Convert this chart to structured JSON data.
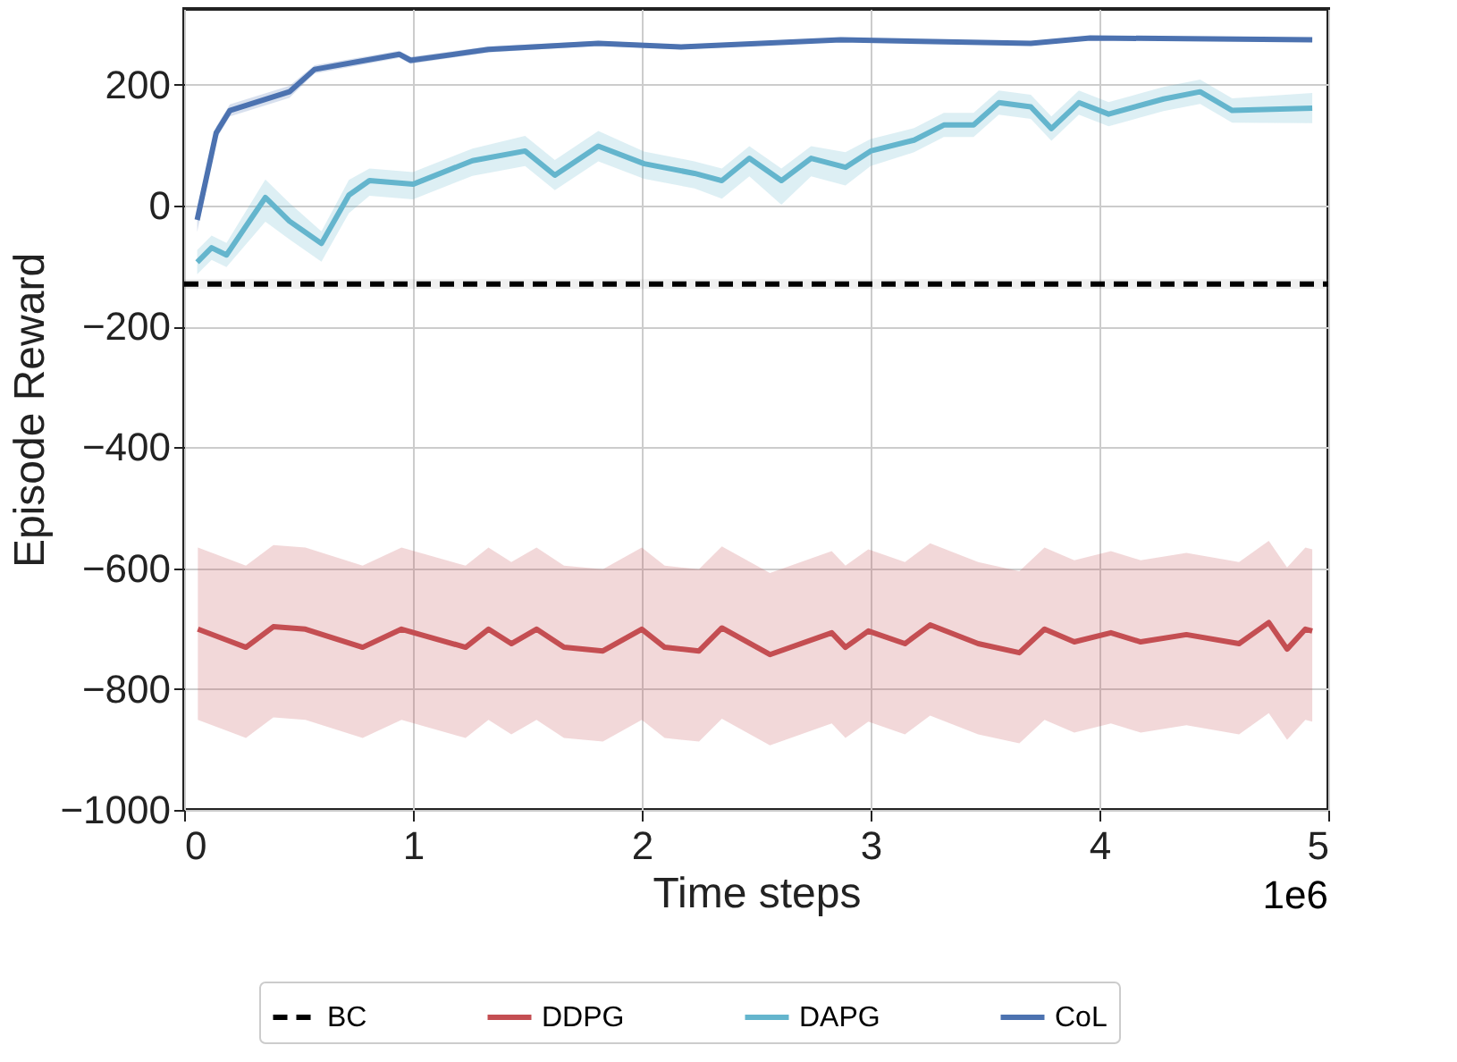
{
  "chart_data": {
    "type": "line",
    "xlabel": "Time steps",
    "ylabel": "Episode Reward",
    "annotations": [
      "1e6"
    ],
    "xlim": [
      0,
      5
    ],
    "xticks": [
      0,
      1,
      2,
      3,
      4,
      5
    ],
    "ylim": [
      -1000,
      325
    ],
    "yticks": [
      -1000,
      -800,
      -600,
      -400,
      -200,
      0,
      200
    ],
    "grid": true,
    "legend": "bottom",
    "marker": "none",
    "series": [
      {
        "name": "BC",
        "color": "#000000",
        "line_style": "dashed",
        "x": [
          0.0,
          5.0
        ],
        "values": [
          -130,
          -130
        ],
        "lower": [
          -138,
          -138
        ],
        "upper": [
          -122,
          -122
        ]
      },
      {
        "name": "DDPG",
        "color": "#c44e52",
        "line_style": "solid",
        "x": [
          0.06,
          0.27,
          0.39,
          0.53,
          0.78,
          0.95,
          1.23,
          1.33,
          1.43,
          1.54,
          1.66,
          1.83,
          2.0,
          2.1,
          2.25,
          2.35,
          2.56,
          2.83,
          2.89,
          2.99,
          3.15,
          3.26,
          3.47,
          3.65,
          3.76,
          3.89,
          4.05,
          4.18,
          4.38,
          4.61,
          4.74,
          4.82,
          4.9,
          4.93
        ],
        "values": [
          -701,
          -731,
          -697,
          -701,
          -731,
          -701,
          -731,
          -701,
          -725,
          -701,
          -731,
          -737,
          -701,
          -731,
          -737,
          -699,
          -743,
          -707,
          -731,
          -704,
          -725,
          -694,
          -725,
          -740,
          -701,
          -722,
          -707,
          -722,
          -710,
          -725,
          -690,
          -734,
          -701,
          -704
        ],
        "lower": [
          -851,
          -881,
          -847,
          -851,
          -881,
          -851,
          -881,
          -851,
          -875,
          -851,
          -881,
          -887,
          -851,
          -881,
          -887,
          -849,
          -893,
          -857,
          -881,
          -854,
          -875,
          -844,
          -875,
          -890,
          -851,
          -872,
          -857,
          -872,
          -860,
          -875,
          -840,
          -884,
          -851,
          -854
        ],
        "upper": [
          -566,
          -596,
          -562,
          -566,
          -596,
          -566,
          -596,
          -566,
          -590,
          -566,
          -596,
          -602,
          -566,
          -596,
          -602,
          -564,
          -608,
          -572,
          -596,
          -569,
          -590,
          -559,
          -590,
          -605,
          -566,
          -587,
          -572,
          -587,
          -575,
          -590,
          -555,
          -599,
          -566,
          -569
        ]
      },
      {
        "name": "DAPG",
        "color": "#64b5cd",
        "line_style": "solid",
        "x": [
          0.057,
          0.12,
          0.185,
          0.355,
          0.46,
          0.6,
          0.72,
          0.81,
          1.0,
          1.26,
          1.49,
          1.62,
          1.81,
          2.01,
          2.23,
          2.35,
          2.47,
          2.61,
          2.74,
          2.89,
          3.0,
          3.19,
          3.32,
          3.45,
          3.56,
          3.7,
          3.79,
          3.91,
          4.04,
          4.28,
          4.44,
          4.58,
          4.93
        ],
        "values": [
          -94,
          -70,
          -82,
          13,
          -26,
          -63,
          17,
          41,
          35,
          74,
          90,
          50,
          98,
          69,
          53,
          41,
          78,
          41,
          78,
          63,
          90,
          108,
          133,
          133,
          170,
          163,
          127,
          170,
          151,
          176,
          188,
          157,
          161
        ],
        "lower": [
          -114,
          -90,
          -102,
          -27,
          -56,
          -93,
          -13,
          16,
          10,
          49,
          65,
          25,
          73,
          44,
          28,
          11,
          48,
          1,
          48,
          33,
          65,
          88,
          113,
          113,
          150,
          143,
          107,
          150,
          131,
          156,
          168,
          137,
          136
        ],
        "upper": [
          -74,
          -50,
          -62,
          43,
          4,
          -43,
          42,
          61,
          55,
          94,
          115,
          75,
          123,
          89,
          73,
          61,
          98,
          61,
          98,
          88,
          110,
          128,
          153,
          153,
          190,
          183,
          147,
          190,
          171,
          196,
          208,
          177,
          186
        ]
      },
      {
        "name": "CoL",
        "color": "#4c72b0",
        "line_style": "solid",
        "x": [
          0.057,
          0.14,
          0.2,
          0.46,
          0.57,
          0.94,
          0.99,
          1.33,
          1.81,
          2.17,
          2.87,
          3.7,
          3.96,
          4.93
        ],
        "values": [
          -24,
          120,
          157,
          188,
          225,
          250,
          240,
          258,
          268,
          262,
          274,
          268,
          277,
          274
        ],
        "lower": [
          -44,
          110,
          147,
          178,
          218,
          244,
          234,
          253,
          264,
          258,
          271,
          265,
          274,
          271
        ],
        "upper": [
          -4,
          130,
          167,
          198,
          232,
          256,
          246,
          263,
          272,
          266,
          277,
          271,
          280,
          277
        ]
      }
    ]
  }
}
